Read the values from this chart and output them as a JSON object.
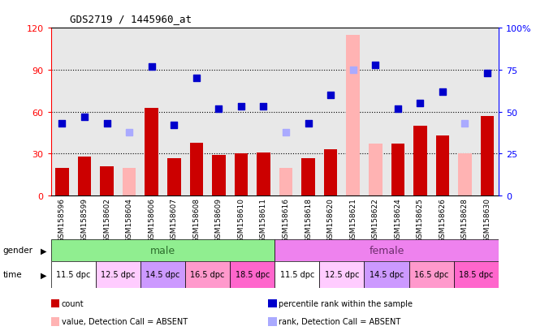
{
  "title": "GDS2719 / 1445960_at",
  "samples": [
    "GSM158596",
    "GSM158599",
    "GSM158602",
    "GSM158604",
    "GSM158606",
    "GSM158607",
    "GSM158608",
    "GSM158609",
    "GSM158610",
    "GSM158611",
    "GSM158616",
    "GSM158618",
    "GSM158620",
    "GSM158621",
    "GSM158622",
    "GSM158624",
    "GSM158625",
    "GSM158626",
    "GSM158628",
    "GSM158630"
  ],
  "count_values": [
    20,
    28,
    21,
    null,
    63,
    27,
    38,
    29,
    30,
    31,
    null,
    27,
    33,
    null,
    null,
    37,
    50,
    43,
    null,
    57
  ],
  "count_absent": [
    null,
    null,
    null,
    20,
    null,
    null,
    null,
    null,
    null,
    null,
    20,
    null,
    null,
    115,
    37,
    null,
    null,
    null,
    30,
    null
  ],
  "percentile_values": [
    43,
    47,
    43,
    null,
    77,
    42,
    70,
    52,
    53,
    53,
    null,
    43,
    60,
    null,
    78,
    52,
    55,
    62,
    null,
    73
  ],
  "percentile_absent": [
    null,
    null,
    null,
    38,
    null,
    null,
    null,
    null,
    null,
    null,
    38,
    null,
    null,
    75,
    null,
    null,
    null,
    null,
    43,
    null
  ],
  "ylim_left": [
    0,
    120
  ],
  "ylim_right": [
    0,
    100
  ],
  "yticks_left": [
    0,
    30,
    60,
    90,
    120
  ],
  "yticks_right": [
    0,
    25,
    50,
    75,
    100
  ],
  "bar_color": "#cc0000",
  "bar_absent_color": "#ffb3b3",
  "dot_color": "#0000cc",
  "dot_absent_color": "#aaaaff",
  "gender_male_color": "#90ee90",
  "gender_female_color": "#ee82ee",
  "time_labels": [
    "11.5 dpc",
    "12.5 dpc",
    "14.5 dpc",
    "16.5 dpc",
    "18.5 dpc",
    "11.5 dpc",
    "12.5 dpc",
    "14.5 dpc",
    "16.5 dpc",
    "18.5 dpc"
  ],
  "time_bg_colors": [
    "#ffffff",
    "#ffccff",
    "#cc99ff",
    "#ff99cc",
    "#ff66cc",
    "#ffffff",
    "#ffccff",
    "#cc99ff",
    "#ff99cc",
    "#ff66cc"
  ],
  "legend_items": [
    {
      "label": "count",
      "color": "#cc0000"
    },
    {
      "label": "percentile rank within the sample",
      "color": "#0000cc"
    },
    {
      "label": "value, Detection Call = ABSENT",
      "color": "#ffb3b3"
    },
    {
      "label": "rank, Detection Call = ABSENT",
      "color": "#aaaaff"
    }
  ]
}
